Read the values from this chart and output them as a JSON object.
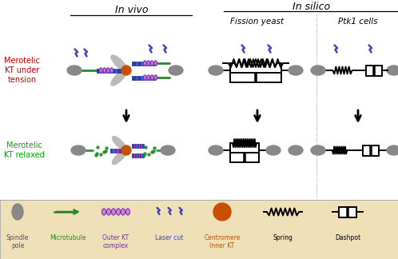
{
  "title_invivo": "In vivo",
  "title_insilico": "In silico",
  "subtitle_fission": "Fission yeast",
  "subtitle_ptk1": "Ptk1 cells",
  "label_tension": "Merotelic\nKT under\ntension",
  "label_relaxed": "Merotelic\nKT relaxed",
  "label_tension_color": "#cc0000",
  "label_relaxed_color": "#00aa00",
  "bg_color": "#ffffff",
  "legend_bg": "#f0e0b8",
  "spindle_pole_color": "#888888",
  "mt_color": "#228B22",
  "outer_kt_bead_color": "#cc88cc",
  "outer_kt_border_color": "#7B2FBE",
  "inner_kt_color": "#c85000",
  "laser_color": "#4444bb",
  "spring_color": "#000000",
  "mt_tube_color": "#2244aa",
  "mt_stripe_color": "#cc44aa",
  "propeller_color": "#bbbbbb",
  "black": "#000000",
  "gray_text": "#555555"
}
